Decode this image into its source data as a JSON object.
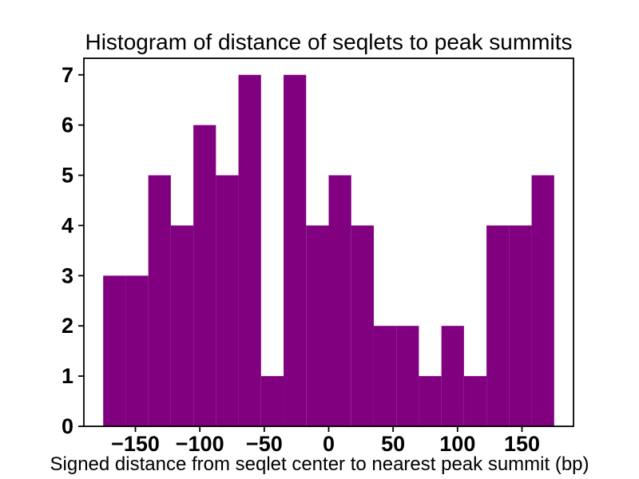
{
  "chart_data": {
    "type": "bar",
    "subtype": "histogram",
    "title": "Histogram of distance of seqlets to peak summits",
    "xlabel": "Signed distance from seqlet center to nearest peak summit (bp)",
    "ylabel": "",
    "bar_color": "#800080",
    "background_color": "#ffffff",
    "bin_edges": [
      -175,
      -157.5,
      -140,
      -122.5,
      -105,
      -87.5,
      -70,
      -52.5,
      -35,
      -17.5,
      0,
      17.5,
      35,
      52.5,
      70,
      87.5,
      105,
      122.5,
      140,
      157.5,
      175
    ],
    "counts": [
      3,
      3,
      5,
      4,
      6,
      5,
      7,
      1,
      7,
      4,
      5,
      4,
      2,
      2,
      1,
      2,
      1,
      4,
      4,
      5
    ],
    "xlim": [
      -190,
      190
    ],
    "ylim": [
      0,
      7.33
    ],
    "xticks": [
      -150,
      -100,
      -50,
      0,
      50,
      100,
      150
    ],
    "xtick_labels": [
      "−150",
      "−100",
      "−50",
      "0",
      "50",
      "100",
      "150"
    ],
    "yticks": [
      0,
      1,
      2,
      3,
      4,
      5,
      6,
      7
    ],
    "ytick_labels": [
      "0",
      "1",
      "2",
      "3",
      "4",
      "5",
      "6",
      "7"
    ],
    "grid": false,
    "legend": null
  }
}
